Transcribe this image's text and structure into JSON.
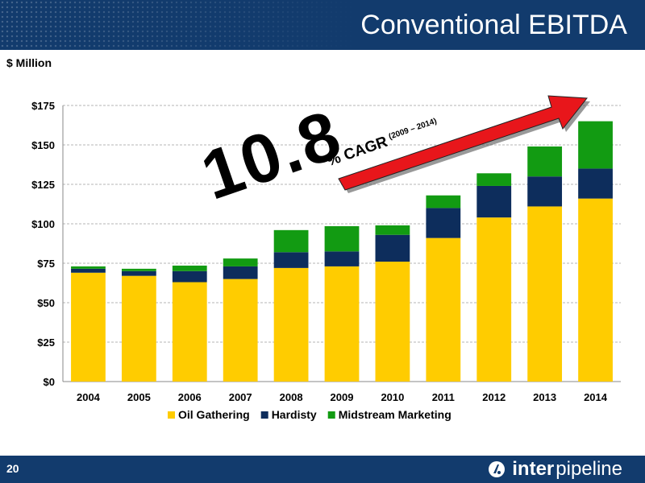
{
  "header": {
    "title": "Conventional EBITDA"
  },
  "unit_label": "$ Million",
  "annotation": {
    "big_number": "10.8",
    "cagr_label": "% CAGR",
    "cagr_period": "(2009 – 2014)"
  },
  "footer": {
    "page_number": "20",
    "logo_word_1": "inter",
    "logo_word_2": "pipeline",
    "logo_icon": "inter-pipeline-logo-icon"
  },
  "colors": {
    "header_bg": "#123b6d",
    "oil_gathering": "#ffcc00",
    "hardisty": "#0d2d5c",
    "midstream_marketing": "#129b12",
    "arrow": "#e8161b"
  },
  "chart_data": {
    "type": "bar",
    "stacked": true,
    "categories": [
      "2004",
      "2005",
      "2006",
      "2007",
      "2008",
      "2009",
      "2010",
      "2011",
      "2012",
      "2013",
      "2014"
    ],
    "series": [
      {
        "name": "Oil Gathering",
        "color": "#ffcc00",
        "values": [
          69,
          67,
          63,
          65,
          72,
          73,
          76,
          91,
          104,
          111,
          116
        ]
      },
      {
        "name": "Hardisty",
        "color": "#0d2d5c",
        "values": [
          2.5,
          3,
          7,
          8,
          10,
          9.5,
          17,
          19,
          20,
          19,
          19
        ]
      },
      {
        "name": "Midstream Marketing",
        "color": "#129b12",
        "values": [
          1.5,
          1.5,
          3.5,
          5,
          14,
          16,
          6,
          8,
          8,
          19,
          30
        ]
      }
    ],
    "y_ticks": [
      "$0",
      "$25",
      "$50",
      "$75",
      "$100",
      "$125",
      "$150",
      "$175"
    ],
    "y_tick_values": [
      0,
      25,
      50,
      75,
      100,
      125,
      150,
      175
    ],
    "ylim": [
      0,
      175
    ],
    "ylabel": "$ Million",
    "grid": true,
    "legend_position": "bottom"
  }
}
